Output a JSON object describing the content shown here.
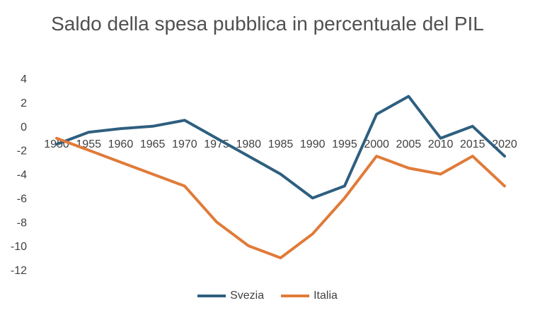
{
  "chart_data": {
    "type": "line",
    "title": "Saldo della spesa pubblica in percentuale del PIL",
    "xlabel": "",
    "ylabel": "",
    "categories": [
      "1950",
      "1955",
      "1960",
      "1965",
      "1970",
      "1975",
      "1980",
      "1985",
      "1990",
      "1995",
      "2000",
      "2005",
      "2010",
      "2015",
      "2020"
    ],
    "ylim": [
      -12,
      4
    ],
    "yticks": [
      "4",
      "2",
      "0",
      "-2",
      "-4",
      "-6",
      "-8",
      "-10",
      "-12"
    ],
    "grid": false,
    "legend": "bottom",
    "series": [
      {
        "name": "Svezia",
        "color": "#2e5f7f",
        "values": [
          -1.5,
          -0.5,
          -0.2,
          0,
          0.5,
          -1,
          -2.5,
          -4,
          -6,
          -5,
          1,
          2.5,
          -1,
          0,
          -2.5
        ]
      },
      {
        "name": "Italia",
        "color": "#e07b39",
        "values": [
          -1,
          -2,
          -3,
          -4,
          -5,
          -8,
          -10,
          -11,
          -9,
          -6,
          -2.5,
          -3.5,
          -4,
          -2.5,
          -5
        ]
      }
    ]
  }
}
